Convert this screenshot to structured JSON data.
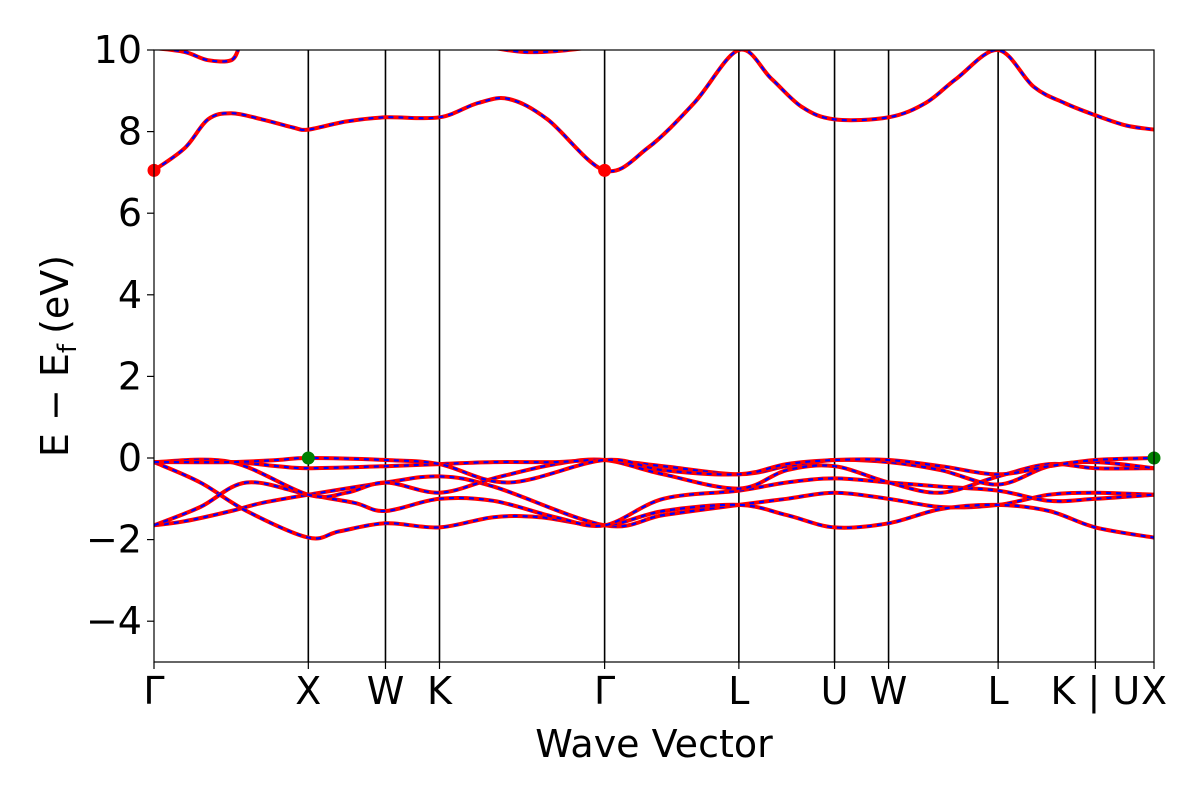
{
  "chart_data": {
    "type": "line",
    "title": "",
    "xlabel": "Wave Vector",
    "ylabel_main": "E − E",
    "ylabel_sub": "f",
    "ylabel_unit": "(eV)",
    "ylim": [
      -5,
      10
    ],
    "yticks": [
      -4,
      -2,
      0,
      2,
      4,
      6,
      8,
      10
    ],
    "ytick_labels": [
      "−4",
      "−2",
      "0",
      "2",
      "4",
      "6",
      "8",
      "10"
    ],
    "xlim": [
      0,
      6.48
    ],
    "kpoints": [
      {
        "label": "Γ",
        "x": 0.0
      },
      {
        "label": "X",
        "x": 1.0
      },
      {
        "label": "W",
        "x": 1.5
      },
      {
        "label": "K",
        "x": 1.85
      },
      {
        "label": "Γ",
        "x": 2.92
      },
      {
        "label": "L",
        "x": 3.79
      },
      {
        "label": "U",
        "x": 4.41
      },
      {
        "label": "W",
        "x": 4.76
      },
      {
        "label": "L",
        "x": 5.47
      },
      {
        "label": "K | U",
        "x": 6.1
      },
      {
        "label": "X",
        "x": 6.48
      }
    ],
    "grid": false,
    "line_colors": {
      "base": "#ff0000",
      "overlay": "#0000ff"
    },
    "series": [
      {
        "x": [
          0,
          0.2,
          0.5,
          0.7,
          1.0,
          1.5,
          1.85,
          2.2,
          2.92,
          3.3,
          3.79,
          4.1,
          4.41,
          4.76,
          5.1,
          5.47,
          5.8,
          6.1,
          6.48
        ],
        "y": [
          -1.65,
          -1.55,
          -1.3,
          -1.1,
          -0.9,
          -0.6,
          -0.45,
          -0.7,
          -1.65,
          -1.4,
          -1.15,
          -1.0,
          -0.85,
          -1.0,
          -1.2,
          -1.15,
          -0.9,
          -0.85,
          -0.9
        ]
      },
      {
        "x": [
          0,
          0.3,
          0.6,
          1.0,
          1.2,
          1.5,
          1.85,
          2.2,
          2.5,
          2.92,
          3.3,
          3.79,
          4.1,
          4.41,
          4.76,
          5.1,
          5.47,
          5.8,
          6.1,
          6.48
        ],
        "y": [
          -0.1,
          -0.6,
          -1.3,
          -1.95,
          -1.8,
          -1.6,
          -1.7,
          -1.45,
          -1.45,
          -1.65,
          -1.3,
          -1.15,
          -1.4,
          -1.7,
          -1.6,
          -1.25,
          -1.15,
          -1.3,
          -1.7,
          -1.95
        ]
      },
      {
        "x": [
          0,
          0.3,
          0.6,
          1.0,
          1.3,
          1.5,
          1.85,
          2.2,
          2.6,
          2.92,
          3.3,
          3.79,
          4.1,
          4.41,
          4.76,
          5.1,
          5.47,
          5.8,
          6.1,
          6.48
        ],
        "y": [
          -1.65,
          -1.2,
          -0.6,
          -0.9,
          -1.1,
          -1.3,
          -1.0,
          -1.05,
          -1.45,
          -1.65,
          -1.0,
          -0.8,
          -0.6,
          -0.5,
          -0.6,
          -0.7,
          -0.8,
          -1.05,
          -1.0,
          -0.9
        ]
      },
      {
        "x": [
          0,
          0.5,
          1.0,
          1.25,
          1.5,
          1.85,
          2.2,
          2.6,
          2.92,
          3.3,
          3.79,
          4.1,
          4.41,
          4.76,
          5.1,
          5.47,
          5.8,
          6.1,
          6.48
        ],
        "y": [
          -0.1,
          -0.1,
          -0.9,
          -0.85,
          -0.6,
          -0.85,
          -0.5,
          -0.15,
          -0.05,
          -0.4,
          -0.75,
          -0.3,
          -0.2,
          -0.6,
          -0.85,
          -0.45,
          -0.15,
          -0.25,
          -0.25
        ]
      },
      {
        "x": [
          0,
          0.5,
          0.8,
          1.0,
          1.5,
          1.85,
          2.2,
          2.6,
          2.92,
          3.3,
          3.79,
          4.1,
          4.41,
          4.76,
          5.1,
          5.47,
          5.8,
          6.1,
          6.48
        ],
        "y": [
          -0.1,
          -0.1,
          -0.2,
          -0.25,
          -0.2,
          -0.15,
          -0.1,
          -0.1,
          -0.05,
          -0.2,
          -0.4,
          -0.2,
          -0.05,
          -0.1,
          -0.3,
          -0.65,
          -0.2,
          -0.1,
          -0.25
        ]
      },
      {
        "x": [
          0,
          0.5,
          0.8,
          1.0,
          1.5,
          1.85,
          2.3,
          2.92,
          3.3,
          3.79,
          4.1,
          4.41,
          4.76,
          5.1,
          5.47,
          5.8,
          6.1,
          6.48
        ],
        "y": [
          -0.1,
          -0.1,
          -0.05,
          0.0,
          -0.05,
          -0.15,
          -0.6,
          -0.05,
          -0.3,
          -0.4,
          -0.15,
          -0.05,
          -0.05,
          -0.2,
          -0.4,
          -0.2,
          -0.05,
          0.0
        ]
      },
      {
        "x": [
          0,
          0.2,
          0.35,
          0.5,
          0.7,
          0.9,
          1.0,
          1.25,
          1.5,
          1.85,
          2.1,
          2.3,
          2.55,
          2.92,
          3.2,
          3.5,
          3.79,
          4.0,
          4.2,
          4.41,
          4.76,
          5.0,
          5.2,
          5.47,
          5.7,
          5.9,
          6.1,
          6.3,
          6.48
        ],
        "y": [
          7.05,
          7.6,
          8.3,
          8.45,
          8.3,
          8.1,
          8.05,
          8.25,
          8.35,
          8.35,
          8.7,
          8.8,
          8.3,
          7.05,
          7.6,
          8.7,
          10.0,
          9.3,
          8.6,
          8.3,
          8.35,
          8.7,
          9.3,
          10.0,
          9.1,
          8.7,
          8.4,
          8.15,
          8.05
        ]
      },
      {
        "x": [
          0,
          0.2,
          0.35,
          0.5,
          0.55
        ],
        "y": [
          10.05,
          9.95,
          9.75,
          9.75,
          10.05
        ]
      },
      {
        "x": [
          2.2,
          2.4,
          2.6,
          2.8
        ],
        "y": [
          10.05,
          9.95,
          9.97,
          10.05
        ]
      }
    ],
    "points": [
      {
        "x": 0.0,
        "y": 7.05,
        "color": "#ff0000"
      },
      {
        "x": 2.92,
        "y": 7.05,
        "color": "#ff0000"
      },
      {
        "x": 1.0,
        "y": 0.0,
        "color": "#008000"
      },
      {
        "x": 6.48,
        "y": 0.0,
        "color": "#008000"
      }
    ]
  }
}
